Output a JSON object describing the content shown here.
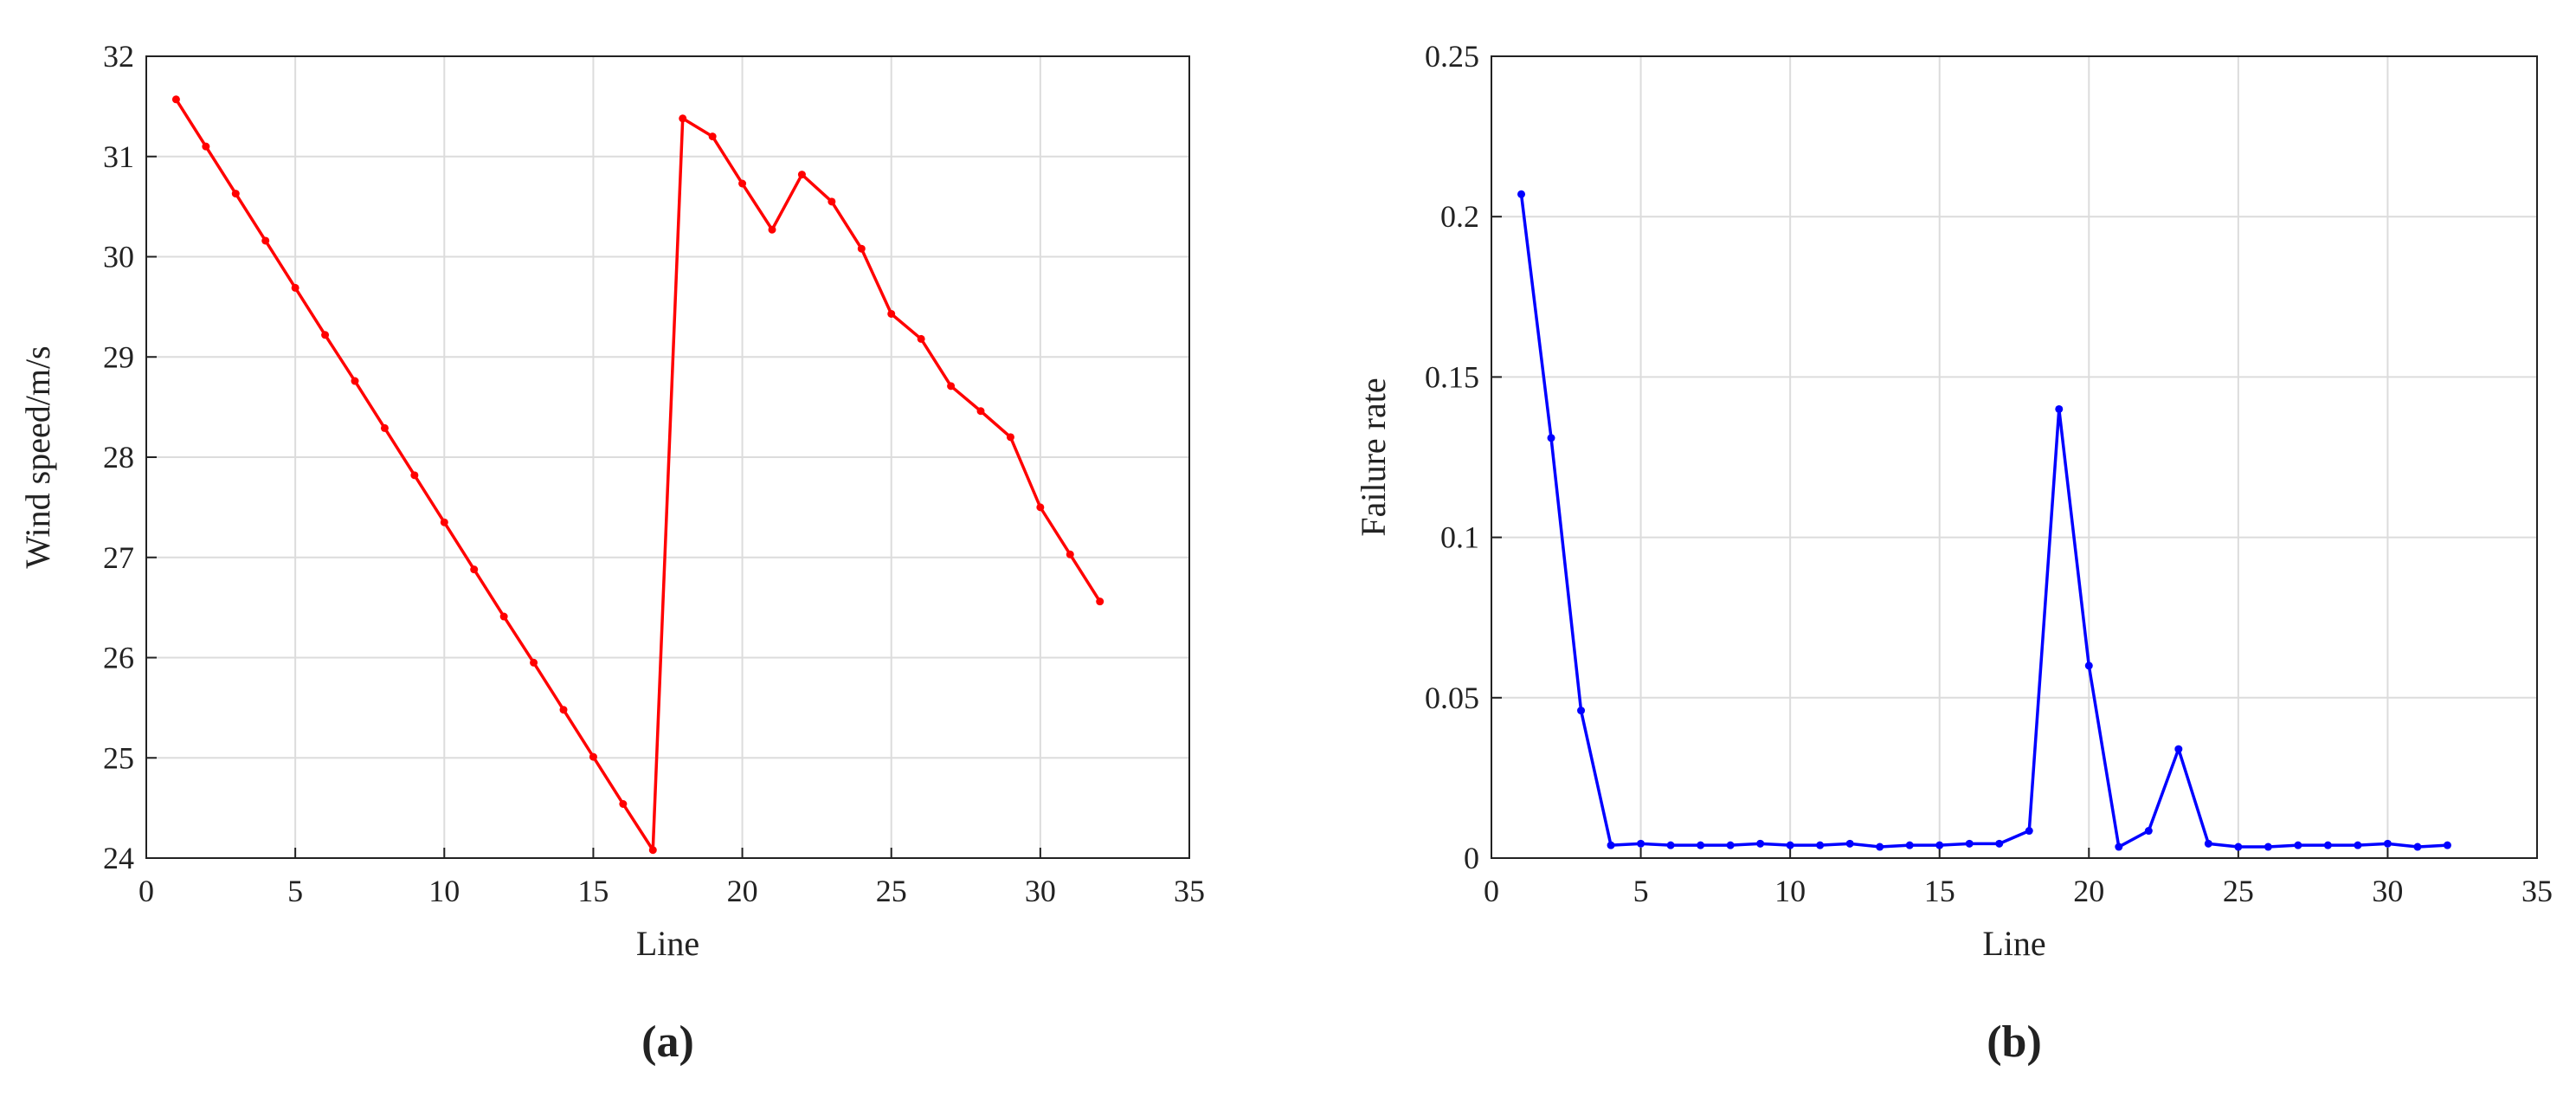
{
  "chart_data": [
    {
      "type": "line",
      "x": [
        1,
        2,
        3,
        4,
        5,
        6,
        7,
        8,
        9,
        10,
        11,
        12,
        13,
        14,
        15,
        16,
        17,
        18,
        19,
        20,
        21,
        22,
        23,
        24,
        25,
        26,
        27,
        28,
        29,
        30,
        31,
        32
      ],
      "values": [
        31.57,
        31.1,
        30.63,
        30.16,
        29.69,
        29.22,
        28.76,
        28.29,
        27.82,
        27.35,
        26.88,
        26.41,
        25.95,
        25.48,
        25.01,
        24.54,
        24.08,
        31.38,
        31.2,
        30.73,
        30.27,
        30.82,
        30.55,
        30.08,
        29.43,
        29.18,
        28.71,
        28.46,
        28.2,
        27.5,
        27.03,
        26.56
      ],
      "color": "#ff0000",
      "xlabel": "Line",
      "ylabel": "Wind speed/m/s",
      "caption": "(a)",
      "xlim": [
        0,
        35
      ],
      "xticks": [
        0,
        5,
        10,
        15,
        20,
        25,
        30,
        35
      ],
      "ylim": [
        24,
        32
      ],
      "yticks": [
        24,
        25,
        26,
        27,
        28,
        29,
        30,
        31,
        32
      ],
      "grid": true
    },
    {
      "type": "line",
      "x": [
        1,
        2,
        3,
        4,
        5,
        6,
        7,
        8,
        9,
        10,
        11,
        12,
        13,
        14,
        15,
        16,
        17,
        18,
        19,
        20,
        21,
        22,
        23,
        24,
        25,
        26,
        27,
        28,
        29,
        30,
        31,
        32
      ],
      "values": [
        0.207,
        0.131,
        0.046,
        0.004,
        0.0045,
        0.004,
        0.004,
        0.004,
        0.0045,
        0.004,
        0.004,
        0.0045,
        0.0035,
        0.004,
        0.004,
        0.0045,
        0.0045,
        0.0085,
        0.14,
        0.06,
        0.0035,
        0.0085,
        0.034,
        0.0045,
        0.0035,
        0.0035,
        0.004,
        0.004,
        0.004,
        0.0045,
        0.0035,
        0.004
      ],
      "color": "#0000ff",
      "xlabel": "Line",
      "ylabel": "Failure rate",
      "caption": "(b)",
      "xlim": [
        0,
        35
      ],
      "xticks": [
        0,
        5,
        10,
        15,
        20,
        25,
        30,
        35
      ],
      "ylim": [
        0,
        0.25
      ],
      "yticks": [
        0,
        0.05,
        0.1,
        0.15,
        0.2,
        0.25
      ],
      "grid": true
    }
  ]
}
